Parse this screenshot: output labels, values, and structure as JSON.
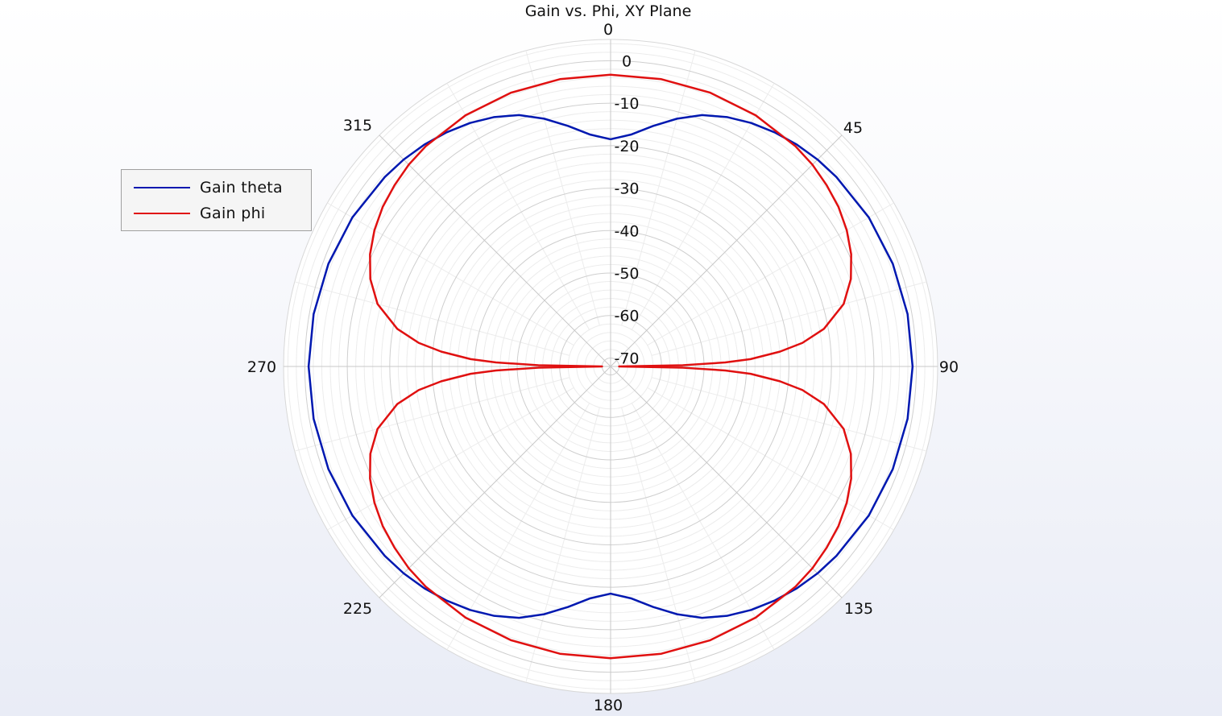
{
  "chart_data": {
    "type": "polar",
    "title": "Gain vs. Phi, XY Plane",
    "angular_ticks": [
      0,
      45,
      90,
      135,
      180,
      225,
      270,
      315
    ],
    "angular_direction": "clockwise",
    "zero_location": "top",
    "radial_ticks": [
      0,
      -10,
      -20,
      -30,
      -40,
      -50,
      -60,
      -70
    ],
    "rlim": [
      -72,
      5
    ],
    "radial_minor_step": 2,
    "angular_minor_step": 15,
    "grid": true,
    "legend_position": "left",
    "series": [
      {
        "name": "Gain theta",
        "color": "#0018b0",
        "theta": [
          0,
          5,
          10,
          15,
          20,
          25,
          30,
          35,
          40,
          45,
          50,
          60,
          70,
          80,
          90,
          100,
          110,
          120,
          130,
          135,
          140,
          145,
          150,
          155,
          160,
          165,
          170,
          175,
          180,
          185,
          190,
          195,
          200,
          205,
          210,
          215,
          220,
          225,
          230,
          240,
          250,
          260,
          270,
          280,
          290,
          300,
          310,
          315,
          320,
          325,
          330,
          335,
          340,
          345,
          350,
          355,
          360
        ],
        "r": [
          -18.5,
          -17.2,
          -14.5,
          -11.6,
          -9.0,
          -7.2,
          -5.8,
          -4.7,
          -3.8,
          -3.1,
          -2.6,
          -1.8,
          -1.3,
          -1.0,
          -0.9,
          -1.0,
          -1.3,
          -1.8,
          -2.6,
          -3.1,
          -3.8,
          -4.7,
          -5.8,
          -7.2,
          -9.0,
          -11.6,
          -14.5,
          -17.2,
          -18.5,
          -17.2,
          -14.5,
          -11.6,
          -9.0,
          -7.2,
          -5.8,
          -4.7,
          -3.8,
          -3.1,
          -2.6,
          -1.8,
          -1.3,
          -1.0,
          -0.9,
          -1.0,
          -1.3,
          -1.8,
          -2.6,
          -3.1,
          -3.8,
          -4.7,
          -5.8,
          -7.2,
          -9.0,
          -11.6,
          -14.5,
          -17.2,
          -18.5
        ]
      },
      {
        "name": "Gain phi",
        "color": "#e01010",
        "theta": [
          0,
          10,
          20,
          30,
          40,
          45,
          50,
          55,
          60,
          65,
          70,
          75,
          80,
          83,
          85,
          87,
          88,
          89,
          90,
          91,
          92,
          93,
          95,
          97,
          100,
          105,
          110,
          115,
          120,
          125,
          130,
          135,
          140,
          150,
          160,
          170,
          180,
          190,
          200,
          210,
          220,
          225,
          230,
          235,
          240,
          245,
          250,
          255,
          260,
          263,
          265,
          267,
          268,
          269,
          270,
          271,
          272,
          273,
          275,
          277,
          280,
          285,
          290,
          295,
          300,
          305,
          310,
          315,
          320,
          330,
          340,
          350,
          360
        ],
        "r": [
          -3.3,
          -3.3,
          -3.4,
          -3.7,
          -4.3,
          -4.8,
          -5.6,
          -6.5,
          -7.8,
          -9.5,
          -11.8,
          -15.2,
          -21.0,
          -26.5,
          -32.0,
          -39.0,
          -45.0,
          -55.0,
          -70.0,
          -55.0,
          -45.0,
          -39.0,
          -32.0,
          -26.5,
          -21.0,
          -15.2,
          -11.8,
          -9.5,
          -7.8,
          -6.5,
          -5.6,
          -4.8,
          -4.3,
          -3.7,
          -3.4,
          -3.3,
          -3.3,
          -3.3,
          -3.4,
          -3.7,
          -4.3,
          -4.8,
          -5.6,
          -6.5,
          -7.8,
          -9.5,
          -11.8,
          -15.2,
          -21.0,
          -26.5,
          -32.0,
          -39.0,
          -45.0,
          -55.0,
          -70.0,
          -55.0,
          -45.0,
          -39.0,
          -32.0,
          -26.5,
          -21.0,
          -15.2,
          -11.8,
          -9.5,
          -7.8,
          -6.5,
          -5.6,
          -4.8,
          -4.3,
          -3.7,
          -3.4,
          -3.3,
          -3.3
        ]
      }
    ]
  }
}
